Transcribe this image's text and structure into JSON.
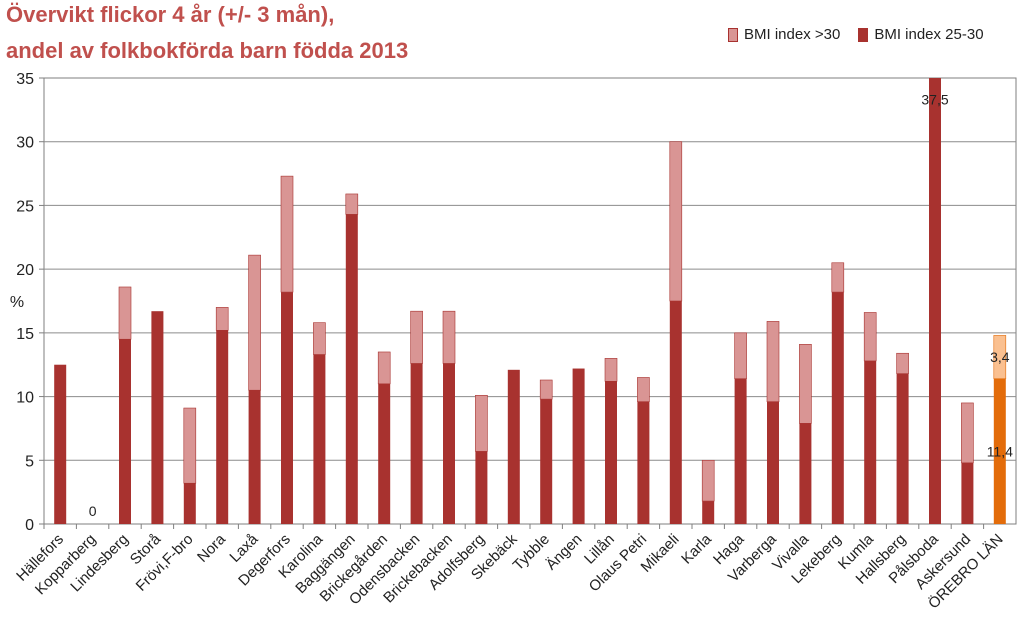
{
  "chart_data": {
    "type": "bar",
    "stacked": true,
    "title_line1": "Övervikt flickor 4 år (+/- 3 mån),",
    "title_line2": "andel av folkbokförda barn födda 2013",
    "ylabel": "%",
    "ylim": [
      0,
      35
    ],
    "yticks": [
      0,
      5,
      10,
      15,
      20,
      25,
      30,
      35
    ],
    "legend": [
      "BMI index >30",
      "BMI index 25-30"
    ],
    "legend_position": "top-right",
    "grid": true,
    "categories": [
      "Hällefors",
      "Kopparberg",
      "Lindesberg",
      "Storå",
      "Frövi,F-bro",
      "Nora",
      "Laxå",
      "Degerfors",
      "Karolina",
      "Baggängen",
      "Brickegården",
      "Odensbacken",
      "Brickebacken",
      "Adolfsberg",
      "Skebäck",
      "Tybble",
      "Ängen",
      "Lillån",
      "Olaus Petri",
      "Mikaeli",
      "Karla",
      "Haga",
      "Varberga",
      "Vivalla",
      "Lekeberg",
      "Kumla",
      "Hallsberg",
      "Pålsboda",
      "Askersund",
      "ÖREBRO LÄN"
    ],
    "series": [
      {
        "name": "BMI index 25-30",
        "color": "#a8322f",
        "values": [
          12.5,
          0,
          14.5,
          16.7,
          3.2,
          15.2,
          10.5,
          18.2,
          13.3,
          24.3,
          11,
          12.6,
          12.6,
          5.7,
          12.1,
          9.8,
          12.2,
          11.2,
          9.6,
          17.5,
          1.8,
          11.4,
          9.6,
          7.9,
          18.2,
          12.8,
          11.8,
          37.5,
          4.8,
          11.4
        ]
      },
      {
        "name": "BMI index >30",
        "color": "#d99594",
        "values": [
          0,
          0,
          4.1,
          0,
          5.9,
          1.8,
          10.6,
          9.1,
          2.5,
          1.6,
          2.5,
          4.1,
          4.1,
          4.4,
          0,
          1.5,
          0,
          1.8,
          1.9,
          12.5,
          3.2,
          3.6,
          6.3,
          6.2,
          2.3,
          3.8,
          1.6,
          0,
          4.7,
          3.4
        ]
      }
    ],
    "highlight_category": "ÖREBRO LÄN",
    "highlight_colors": {
      "lower": "#e36c0a",
      "upper": "#fac090"
    },
    "data_labels": [
      {
        "category": "Kopparberg",
        "text": "0"
      },
      {
        "category": "Pålsboda",
        "text": "37,5"
      },
      {
        "category": "ÖREBRO LÄN",
        "text": "3,4"
      },
      {
        "category": "ÖREBRO LÄN",
        "text": "11,4"
      }
    ]
  }
}
